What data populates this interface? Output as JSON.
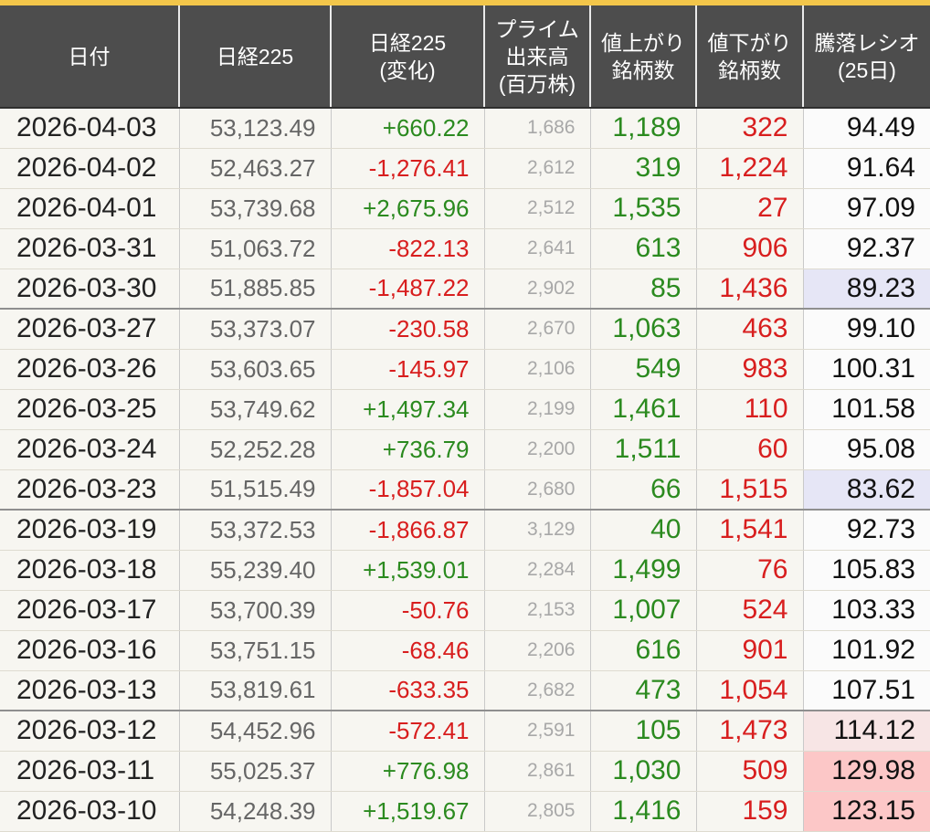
{
  "headers": {
    "date": "日付",
    "nikkei": "日経225",
    "change": [
      "日経225",
      "(変化)"
    ],
    "volume": [
      "プライム",
      "出来高",
      "(百万株)"
    ],
    "advances": [
      "値上がり",
      "銘柄数"
    ],
    "declines": [
      "値下がり",
      "銘柄数"
    ],
    "ratio": [
      "騰落レシオ",
      "(25日)"
    ]
  },
  "colors": {
    "header_bg": "#4d4d4d",
    "top_accent": "#f3c64a",
    "positive": "#2b8a1f",
    "negative": "#d81e1e",
    "ratio_low_bg": "#e6e6f6",
    "ratio_high_bg": "#f7e5e5",
    "ratio_very_high_bg": "#fcc7c7"
  },
  "rows": [
    {
      "date": "2026-04-03",
      "nikkei": "53,123.49",
      "change": "+660.22",
      "dir": "pos",
      "volume": "1,686",
      "advances": "1,189",
      "declines": "322",
      "ratio": "94.49",
      "hl": ""
    },
    {
      "date": "2026-04-02",
      "nikkei": "52,463.27",
      "change": "-1,276.41",
      "dir": "neg",
      "volume": "2,612",
      "advances": "319",
      "declines": "1,224",
      "ratio": "91.64",
      "hl": ""
    },
    {
      "date": "2026-04-01",
      "nikkei": "53,739.68",
      "change": "+2,675.96",
      "dir": "pos",
      "volume": "2,512",
      "advances": "1,535",
      "declines": "27",
      "ratio": "97.09",
      "hl": ""
    },
    {
      "date": "2026-03-31",
      "nikkei": "51,063.72",
      "change": "-822.13",
      "dir": "neg",
      "volume": "2,641",
      "advances": "613",
      "declines": "906",
      "ratio": "92.37",
      "hl": ""
    },
    {
      "date": "2026-03-30",
      "nikkei": "51,885.85",
      "change": "-1,487.22",
      "dir": "neg",
      "volume": "2,902",
      "advances": "85",
      "declines": "1,436",
      "ratio": "89.23",
      "hl": "low",
      "week_end": true
    },
    {
      "date": "2026-03-27",
      "nikkei": "53,373.07",
      "change": "-230.58",
      "dir": "neg",
      "volume": "2,670",
      "advances": "1,063",
      "declines": "463",
      "ratio": "99.10",
      "hl": ""
    },
    {
      "date": "2026-03-26",
      "nikkei": "53,603.65",
      "change": "-145.97",
      "dir": "neg",
      "volume": "2,106",
      "advances": "549",
      "declines": "983",
      "ratio": "100.31",
      "hl": ""
    },
    {
      "date": "2026-03-25",
      "nikkei": "53,749.62",
      "change": "+1,497.34",
      "dir": "pos",
      "volume": "2,199",
      "advances": "1,461",
      "declines": "110",
      "ratio": "101.58",
      "hl": ""
    },
    {
      "date": "2026-03-24",
      "nikkei": "52,252.28",
      "change": "+736.79",
      "dir": "pos",
      "volume": "2,200",
      "advances": "1,511",
      "declines": "60",
      "ratio": "95.08",
      "hl": ""
    },
    {
      "date": "2026-03-23",
      "nikkei": "51,515.49",
      "change": "-1,857.04",
      "dir": "neg",
      "volume": "2,680",
      "advances": "66",
      "declines": "1,515",
      "ratio": "83.62",
      "hl": "low",
      "week_end": true
    },
    {
      "date": "2026-03-19",
      "nikkei": "53,372.53",
      "change": "-1,866.87",
      "dir": "neg",
      "volume": "3,129",
      "advances": "40",
      "declines": "1,541",
      "ratio": "92.73",
      "hl": ""
    },
    {
      "date": "2026-03-18",
      "nikkei": "55,239.40",
      "change": "+1,539.01",
      "dir": "pos",
      "volume": "2,284",
      "advances": "1,499",
      "declines": "76",
      "ratio": "105.83",
      "hl": ""
    },
    {
      "date": "2026-03-17",
      "nikkei": "53,700.39",
      "change": "-50.76",
      "dir": "neg",
      "volume": "2,153",
      "advances": "1,007",
      "declines": "524",
      "ratio": "103.33",
      "hl": ""
    },
    {
      "date": "2026-03-16",
      "nikkei": "53,751.15",
      "change": "-68.46",
      "dir": "neg",
      "volume": "2,206",
      "advances": "616",
      "declines": "901",
      "ratio": "101.92",
      "hl": ""
    },
    {
      "date": "2026-03-13",
      "nikkei": "53,819.61",
      "change": "-633.35",
      "dir": "neg",
      "volume": "2,682",
      "advances": "473",
      "declines": "1,054",
      "ratio": "107.51",
      "hl": "",
      "week_end": true
    },
    {
      "date": "2026-03-12",
      "nikkei": "54,452.96",
      "change": "-572.41",
      "dir": "neg",
      "volume": "2,591",
      "advances": "105",
      "declines": "1,473",
      "ratio": "114.12",
      "hl": "hi1"
    },
    {
      "date": "2026-03-11",
      "nikkei": "55,025.37",
      "change": "+776.98",
      "dir": "pos",
      "volume": "2,861",
      "advances": "1,030",
      "declines": "509",
      "ratio": "129.98",
      "hl": "hi2"
    },
    {
      "date": "2026-03-10",
      "nikkei": "54,248.39",
      "change": "+1,519.67",
      "dir": "pos",
      "volume": "2,805",
      "advances": "1,416",
      "declines": "159",
      "ratio": "123.15",
      "hl": "hi2"
    }
  ]
}
